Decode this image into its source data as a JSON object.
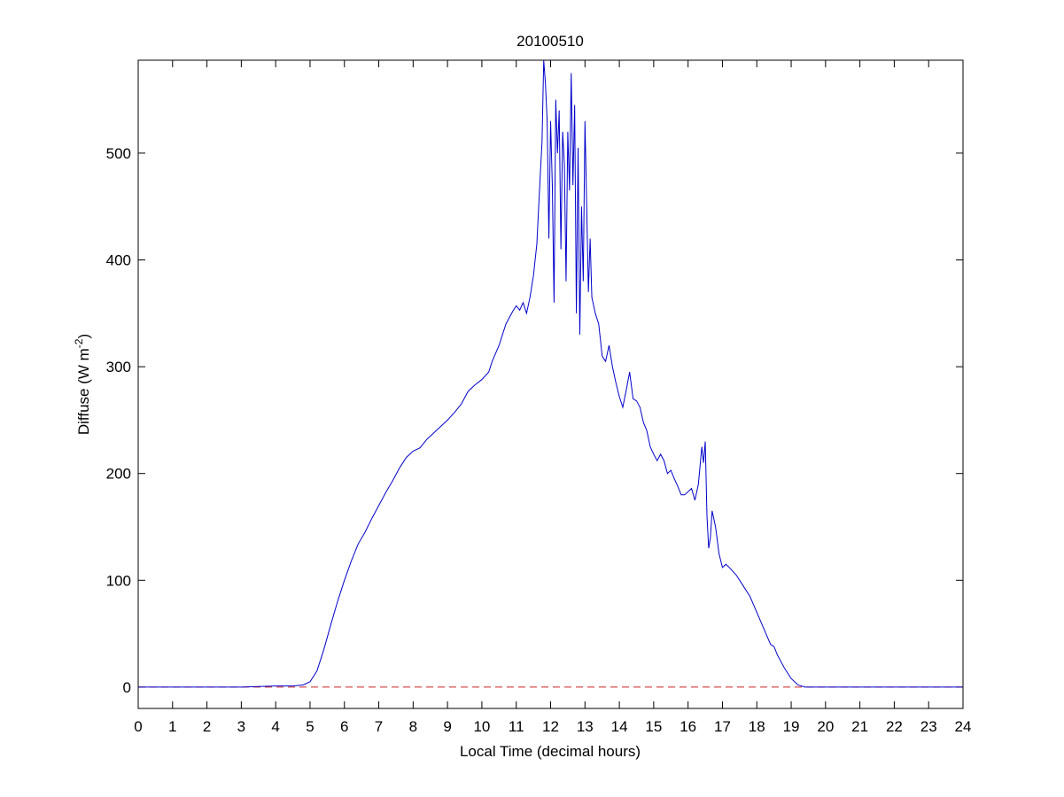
{
  "chart_data": {
    "type": "line",
    "title": "20100510",
    "x_label": "Local Time (decimal hours)",
    "y_label": {
      "text": "Diffuse (W m",
      "superscript": "-2",
      "suffix": ")"
    },
    "xlim": [
      0,
      24
    ],
    "ylim": [
      -20,
      587
    ],
    "xticks": [
      0,
      1,
      2,
      3,
      4,
      5,
      6,
      7,
      8,
      9,
      10,
      11,
      12,
      13,
      14,
      15,
      16,
      17,
      18,
      19,
      20,
      21,
      22,
      23,
      24
    ],
    "yticks": [
      0,
      100,
      200,
      300,
      400,
      500
    ],
    "reference_line": {
      "y": 0,
      "color": "#cc2222",
      "dash": true
    },
    "series": [
      {
        "color": "#0000cc",
        "x": [
          0,
          1,
          2,
          3,
          4,
          4.5,
          4.8,
          5.0,
          5.2,
          5.4,
          5.6,
          5.8,
          6.0,
          6.2,
          6.4,
          6.6,
          6.8,
          7.0,
          7.2,
          7.4,
          7.6,
          7.8,
          8.0,
          8.2,
          8.4,
          8.6,
          8.8,
          9.0,
          9.2,
          9.4,
          9.6,
          9.8,
          10.0,
          10.2,
          10.3,
          10.5,
          10.7,
          10.9,
          11.0,
          11.1,
          11.2,
          11.3,
          11.4,
          11.5,
          11.6,
          11.7,
          11.75,
          11.8,
          11.85,
          11.9,
          11.95,
          12.0,
          12.05,
          12.1,
          12.15,
          12.2,
          12.25,
          12.3,
          12.35,
          12.4,
          12.45,
          12.5,
          12.55,
          12.6,
          12.65,
          12.7,
          12.75,
          12.8,
          12.85,
          12.9,
          12.95,
          13.0,
          13.05,
          13.1,
          13.15,
          13.2,
          13.3,
          13.4,
          13.5,
          13.6,
          13.7,
          13.8,
          13.9,
          14.0,
          14.1,
          14.2,
          14.3,
          14.4,
          14.5,
          14.6,
          14.7,
          14.8,
          14.9,
          15.0,
          15.1,
          15.2,
          15.3,
          15.4,
          15.5,
          15.6,
          15.7,
          15.8,
          15.9,
          16.0,
          16.1,
          16.2,
          16.3,
          16.4,
          16.45,
          16.5,
          16.55,
          16.6,
          16.65,
          16.7,
          16.8,
          16.9,
          17.0,
          17.1,
          17.2,
          17.4,
          17.6,
          17.8,
          18.0,
          18.2,
          18.4,
          18.5,
          18.6,
          18.8,
          19.0,
          19.2,
          19.4,
          20,
          21,
          22,
          23,
          24
        ],
        "values": [
          0,
          0,
          0,
          0,
          1,
          1,
          2,
          5,
          15,
          35,
          58,
          80,
          100,
          118,
          134,
          145,
          158,
          170,
          182,
          193,
          205,
          215,
          221,
          224,
          232,
          238,
          244,
          250,
          257,
          265,
          277,
          283,
          288,
          295,
          305,
          320,
          340,
          352,
          357,
          353,
          360,
          350,
          365,
          385,
          415,
          480,
          510,
          587,
          565,
          530,
          420,
          530,
          470,
          360,
          550,
          500,
          540,
          410,
          520,
          490,
          380,
          520,
          465,
          575,
          470,
          545,
          350,
          505,
          330,
          450,
          380,
          530,
          450,
          370,
          420,
          365,
          350,
          340,
          310,
          305,
          320,
          300,
          285,
          272,
          262,
          278,
          295,
          270,
          268,
          262,
          248,
          240,
          225,
          218,
          212,
          218,
          212,
          200,
          203,
          195,
          188,
          180,
          180,
          183,
          186,
          175,
          190,
          225,
          210,
          230,
          160,
          130,
          140,
          165,
          150,
          125,
          112,
          115,
          112,
          105,
          95,
          85,
          70,
          55,
          40,
          38,
          30,
          18,
          8,
          2,
          0,
          0,
          0,
          0,
          0,
          0
        ]
      }
    ]
  }
}
